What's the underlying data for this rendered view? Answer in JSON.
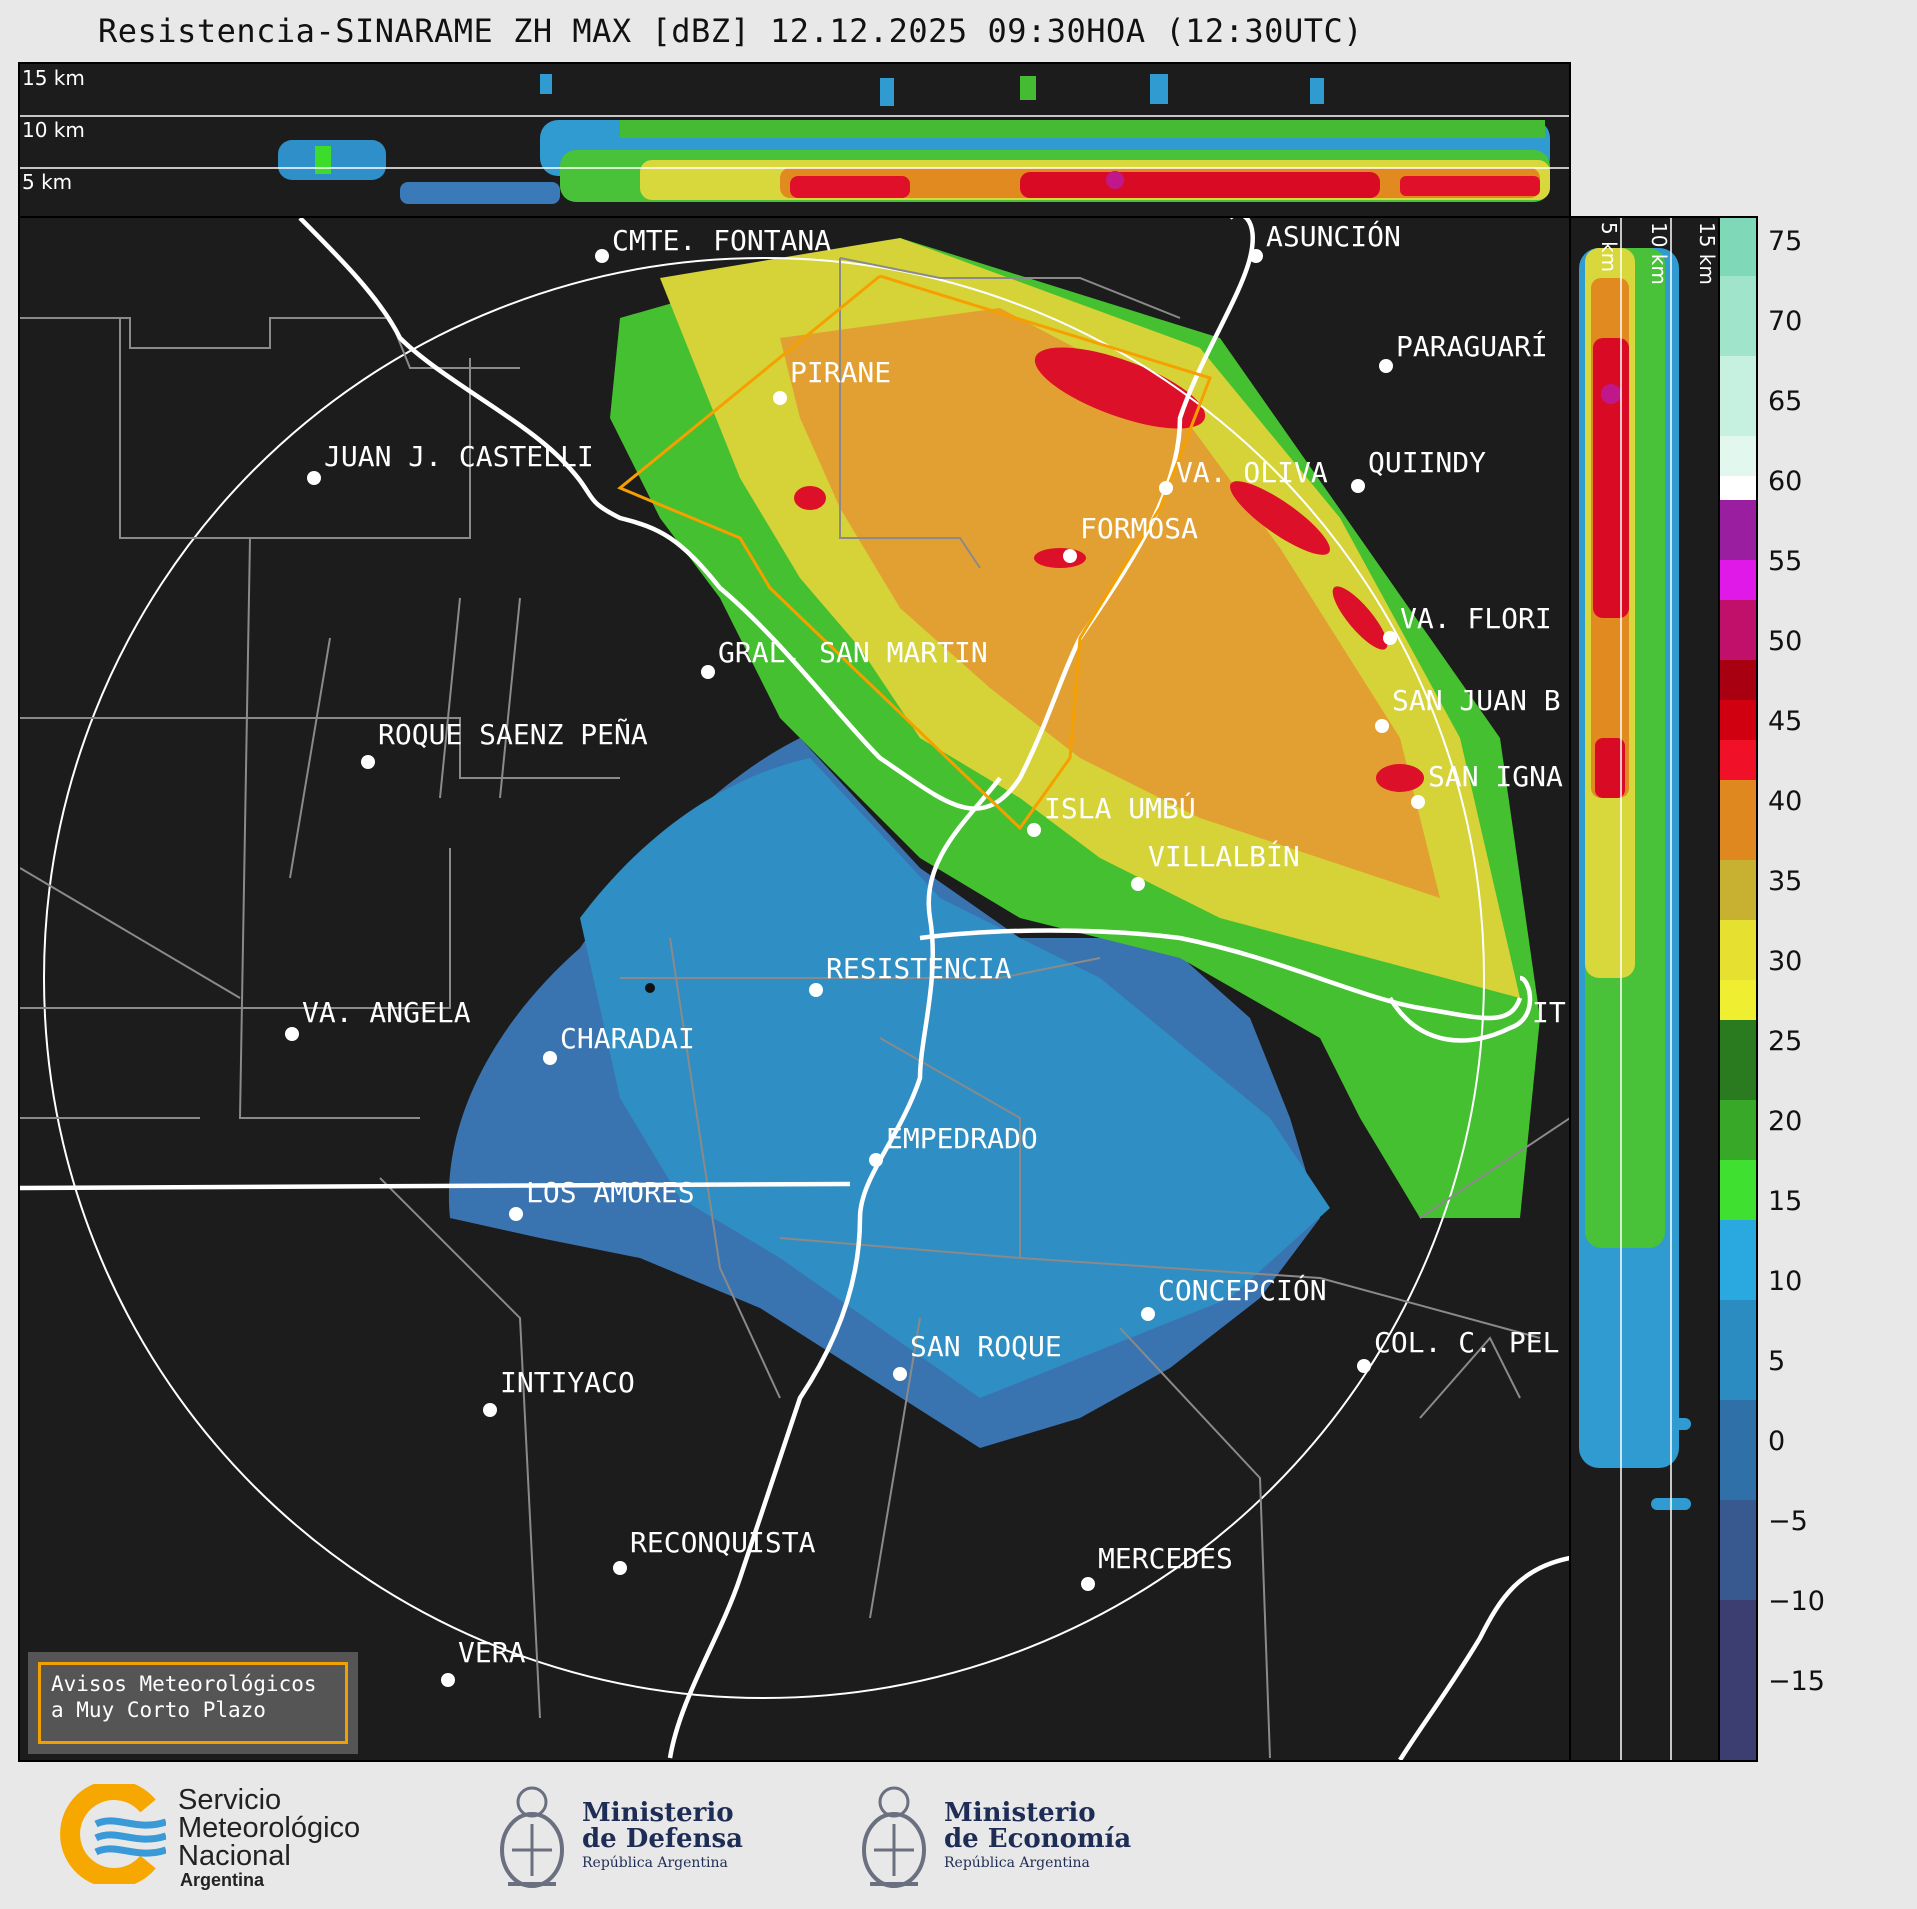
{
  "title": "Resistencia-SINARAME ZH MAX [dBZ] 12.12.2025 09:30HOA (12:30UTC)",
  "top_panel": {
    "altitude_labels": [
      "15 km",
      "10 km",
      "5 km"
    ]
  },
  "side_panel": {
    "altitude_labels": [
      "5 km",
      "10 km",
      "15 km"
    ]
  },
  "colorbar": {
    "ticks": [
      "75",
      "70",
      "65",
      "60",
      "55",
      "50",
      "45",
      "40",
      "35",
      "30",
      "25",
      "20",
      "15",
      "10",
      "5",
      "0",
      "−5",
      "−10",
      "−15"
    ]
  },
  "cities": [
    {
      "name": "CMTE. FONTANA"
    },
    {
      "name": "ASUNCIÓN"
    },
    {
      "name": "PARAGUARÍ"
    },
    {
      "name": "PIRANE"
    },
    {
      "name": "JUAN J. CASTELLI"
    },
    {
      "name": "VA. OLIVA"
    },
    {
      "name": "QUIINDY"
    },
    {
      "name": "FORMOSA"
    },
    {
      "name": "VA. FLORI"
    },
    {
      "name": "GRAL. SAN MARTIN"
    },
    {
      "name": "SAN JUAN B"
    },
    {
      "name": "ROQUE SAENZ PEÑA"
    },
    {
      "name": "SAN IGNA"
    },
    {
      "name": "ISLA UMBÚ"
    },
    {
      "name": "VILLALBÍN"
    },
    {
      "name": "RESISTENCIA"
    },
    {
      "name": "VA. ANGELA"
    },
    {
      "name": "IT"
    },
    {
      "name": "CHARADAI"
    },
    {
      "name": "EMPEDRADO"
    },
    {
      "name": "LOS AMORES"
    },
    {
      "name": "CONCEPCIÓN"
    },
    {
      "name": "SAN ROQUE"
    },
    {
      "name": "COL. C. PEL"
    },
    {
      "name": "INTIYACO"
    },
    {
      "name": "RECONQUISTA"
    },
    {
      "name": "MERCEDES"
    },
    {
      "name": "VERA"
    }
  ],
  "avisos": {
    "line1": "Avisos Meteorológicos",
    "line2": "a Muy Corto Plazo"
  },
  "logos": {
    "smn": {
      "line1": "Servicio",
      "line2": "Meteorológico",
      "line3": "Nacional",
      "line4": "Argentina"
    },
    "defensa": {
      "line1": "Ministerio",
      "line2": "de Defensa",
      "line3": "República Argentina"
    },
    "economia": {
      "line1": "Ministerio",
      "line2": "de Economía",
      "line3": "República Argentina"
    }
  }
}
